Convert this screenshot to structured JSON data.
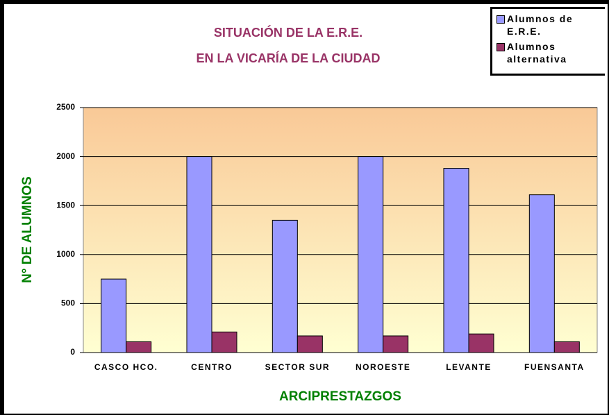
{
  "chart_data": {
    "type": "bar",
    "title": [
      "SITUACIÓN DE LA E.R.E.",
      "EN LA VICARÍA DE LA CIUDAD"
    ],
    "xlabel": "ARCIPRESTAZGOS",
    "ylabel": "N° DE ALUMNOS",
    "categories": [
      "CASCO HCO.",
      "CENTRO",
      "SECTOR SUR",
      "NOROESTE",
      "LEVANTE",
      "FUENSANTA"
    ],
    "series": [
      {
        "name": "Alumnos de E.R.E.",
        "color": "#9999ff",
        "values": [
          750,
          2000,
          1350,
          2000,
          1880,
          1610
        ]
      },
      {
        "name": "Alumnos alternativa",
        "color": "#993366",
        "values": [
          110,
          210,
          170,
          170,
          190,
          110
        ]
      }
    ],
    "ylim": [
      0,
      2500
    ],
    "yticks": [
      0,
      500,
      1000,
      1500,
      2000,
      2500
    ],
    "grid": true,
    "legend": "top-right"
  }
}
